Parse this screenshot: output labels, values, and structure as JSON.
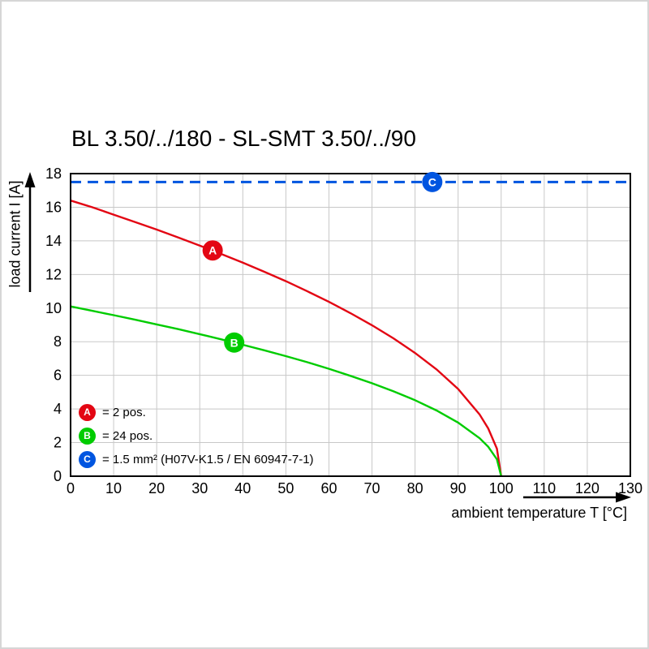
{
  "title": "BL 3.50/../180 - SL-SMT 3.50/../90",
  "chart_data": {
    "type": "line",
    "title": "BL 3.50/../180 - SL-SMT 3.50/../90",
    "xlabel": "ambient temperature T [°C]",
    "ylabel": "load current I [A]",
    "xlim": [
      0,
      130
    ],
    "ylim": [
      0,
      18
    ],
    "x_ticks": [
      0,
      10,
      20,
      30,
      40,
      50,
      60,
      70,
      80,
      90,
      100,
      110,
      120,
      130
    ],
    "y_ticks": [
      0,
      2,
      4,
      6,
      8,
      10,
      12,
      14,
      16,
      18
    ],
    "grid": true,
    "grid_color": "#c8c8c8",
    "frame_color": "#000000",
    "legend_position": "lower-left",
    "series": [
      {
        "name": "A",
        "label": "= 2 pos.",
        "color": "#e30613",
        "style": "solid",
        "width": 2.4,
        "marker": {
          "x": 33,
          "y": 13.43,
          "letter": "A"
        },
        "points": [
          [
            0,
            16.4
          ],
          [
            5,
            16.0
          ],
          [
            10,
            15.56
          ],
          [
            15,
            15.12
          ],
          [
            20,
            14.67
          ],
          [
            25,
            14.2
          ],
          [
            30,
            13.72
          ],
          [
            35,
            13.22
          ],
          [
            40,
            12.7
          ],
          [
            45,
            12.16
          ],
          [
            50,
            11.6
          ],
          [
            55,
            11.0
          ],
          [
            60,
            10.37
          ],
          [
            65,
            9.7
          ],
          [
            70,
            8.98
          ],
          [
            75,
            8.2
          ],
          [
            80,
            7.33
          ],
          [
            85,
            6.35
          ],
          [
            90,
            5.19
          ],
          [
            95,
            3.67
          ],
          [
            97,
            2.84
          ],
          [
            99,
            1.64
          ],
          [
            100,
            0
          ]
        ]
      },
      {
        "name": "B",
        "label": "= 24 pos.",
        "color": "#00cc00",
        "style": "solid",
        "width": 2.4,
        "marker": {
          "x": 38,
          "y": 7.95,
          "letter": "B"
        },
        "points": [
          [
            0,
            10.1
          ],
          [
            5,
            9.84
          ],
          [
            10,
            9.58
          ],
          [
            15,
            9.31
          ],
          [
            20,
            9.03
          ],
          [
            25,
            8.75
          ],
          [
            30,
            8.45
          ],
          [
            35,
            8.14
          ],
          [
            40,
            7.82
          ],
          [
            45,
            7.49
          ],
          [
            50,
            7.14
          ],
          [
            55,
            6.78
          ],
          [
            60,
            6.39
          ],
          [
            65,
            5.97
          ],
          [
            70,
            5.53
          ],
          [
            75,
            5.05
          ],
          [
            80,
            4.52
          ],
          [
            85,
            3.91
          ],
          [
            90,
            3.19
          ],
          [
            95,
            2.26
          ],
          [
            97,
            1.75
          ],
          [
            99,
            1.01
          ],
          [
            100,
            0
          ]
        ]
      },
      {
        "name": "C",
        "label": "= 1.5 mm² (H07V-K1.5 / EN 60947-7-1)",
        "color": "#0055e0",
        "style": "dashed",
        "width": 3,
        "marker": {
          "x": 84,
          "y": 17.5,
          "letter": "C"
        },
        "points": [
          [
            0,
            17.5
          ],
          [
            130,
            17.5
          ]
        ]
      }
    ]
  }
}
